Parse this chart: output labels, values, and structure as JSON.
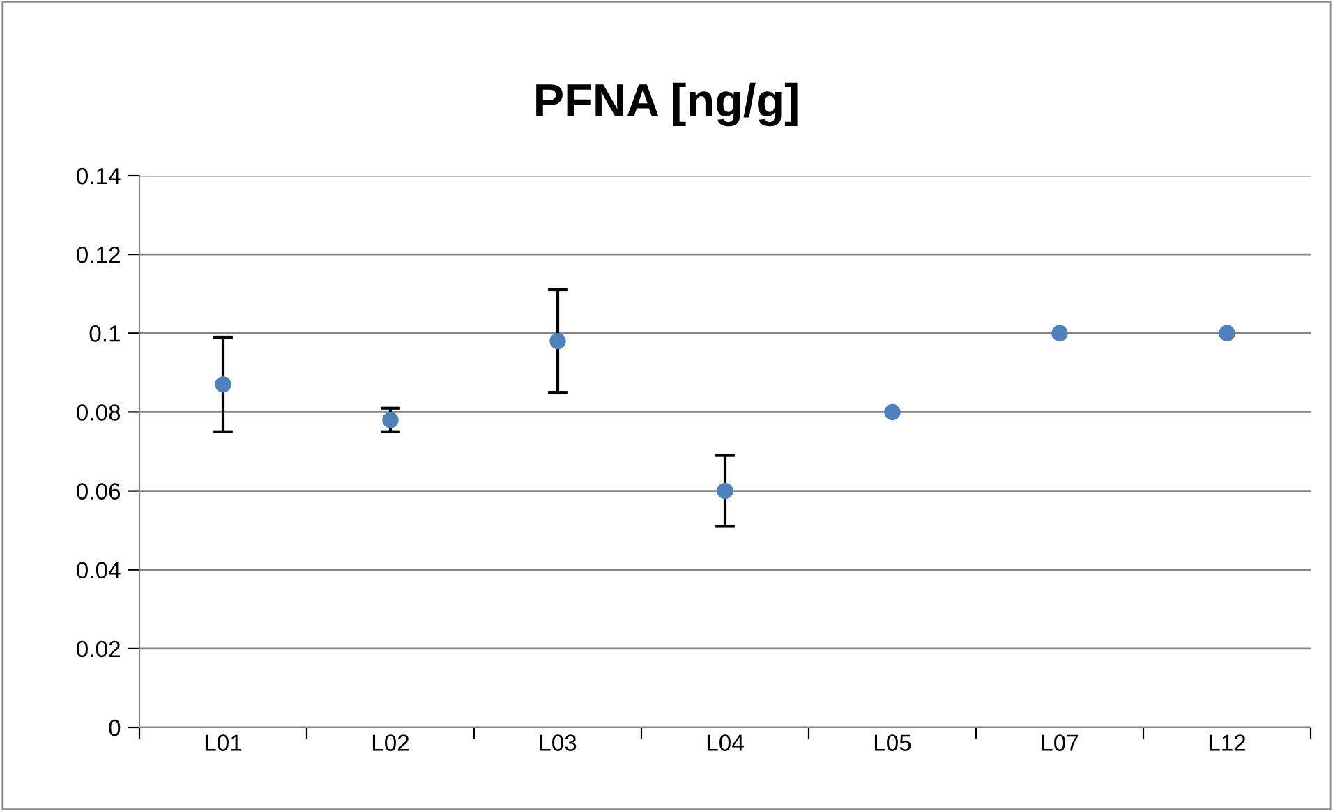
{
  "chart_data": {
    "type": "scatter",
    "title": "PFNA [ng/g]",
    "categories": [
      "L01",
      "L02",
      "L03",
      "L04",
      "L05",
      "L07",
      "L12"
    ],
    "series": [
      {
        "color": "#4f81bd",
        "values": [
          0.087,
          0.078,
          0.098,
          0.06,
          0.08,
          0.1,
          0.1
        ],
        "errors": [
          0.012,
          0.003,
          0.013,
          0.009,
          null,
          null,
          null
        ]
      }
    ],
    "ylim": [
      0,
      0.14
    ],
    "yticks": [
      0,
      0.02,
      0.04,
      0.06,
      0.08,
      {
        "value": 0.1,
        "label": "0.1"
      },
      0.12,
      0.14
    ],
    "grid": "y",
    "legend": false,
    "marker": "circle"
  }
}
